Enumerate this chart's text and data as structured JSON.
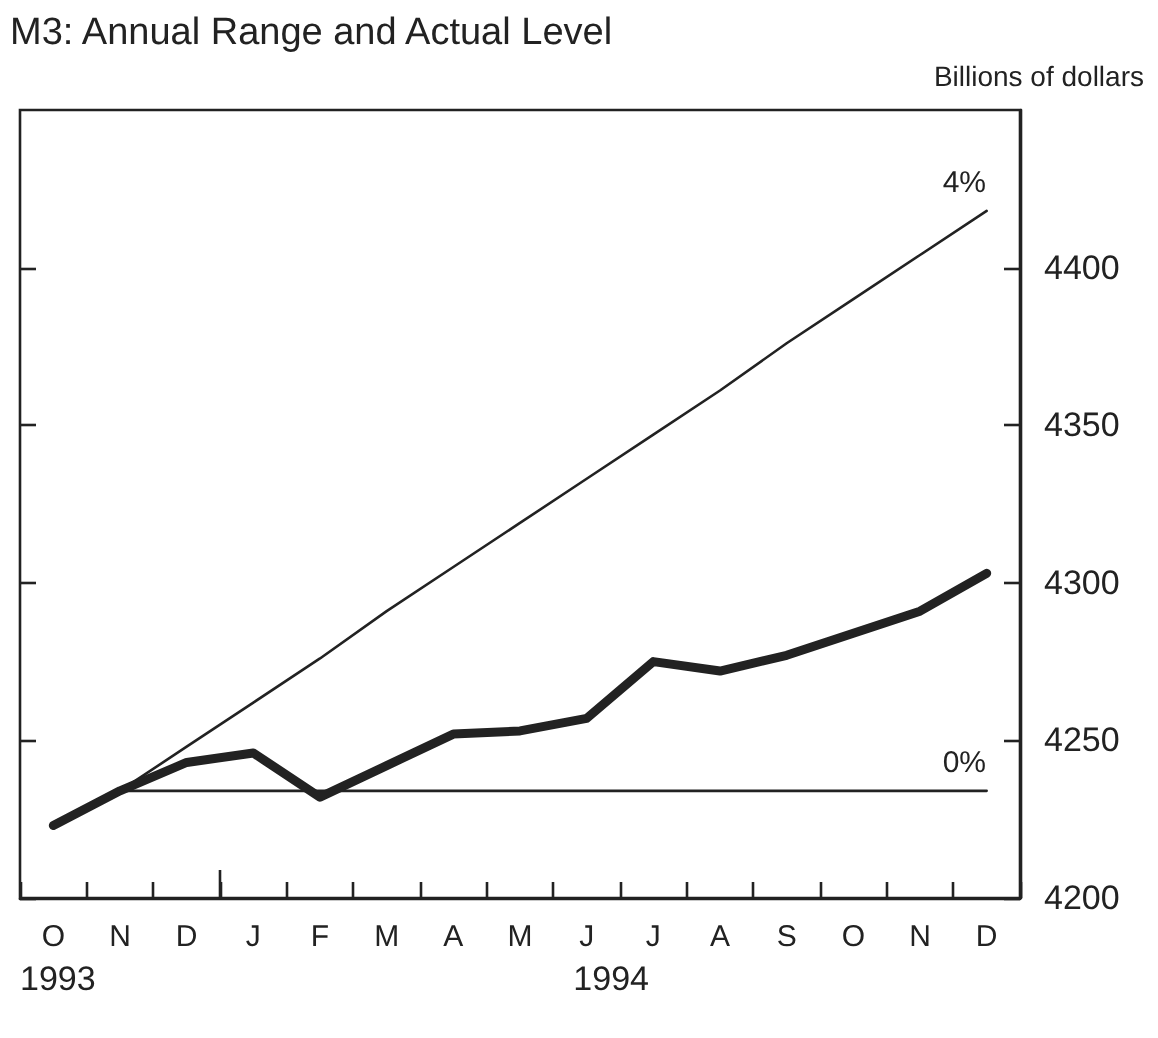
{
  "chart_data": {
    "type": "line",
    "title": "M3: Annual Range and Actual Level",
    "ylabel": "Billions of dollars",
    "categories": [
      "O",
      "N",
      "D",
      "J",
      "F",
      "M",
      "A",
      "M",
      "J",
      "J",
      "A",
      "S",
      "O",
      "N",
      "D"
    ],
    "series": [
      {
        "color": "#222222",
        "values": [
          4223,
          4234,
          4243,
          4246,
          4232,
          4242,
          4252,
          4253,
          4257,
          4275,
          4272,
          4277,
          4284,
          4291,
          4303
        ]
      },
      {
        "name": "4%",
        "color": "#222222",
        "values": [
          null,
          4234,
          4248,
          4262,
          4276,
          4291,
          4305,
          4319,
          4333,
          4347,
          4361,
          4376,
          4390,
          4404,
          4418
        ]
      },
      {
        "name": "0%",
        "color": "#222222",
        "values": [
          null,
          4234,
          4234,
          4234,
          4234,
          4234,
          4234,
          4234,
          4234,
          4234,
          4234,
          4234,
          4234,
          4234,
          4234
        ]
      }
    ],
    "ylim": [
      4200,
      4450
    ],
    "yticks": [
      4200,
      4250,
      4300,
      4350,
      4400
    ],
    "annotations": [
      "1993",
      "1994"
    ],
    "grid": false,
    "marker": "none",
    "line_style": "solid"
  }
}
